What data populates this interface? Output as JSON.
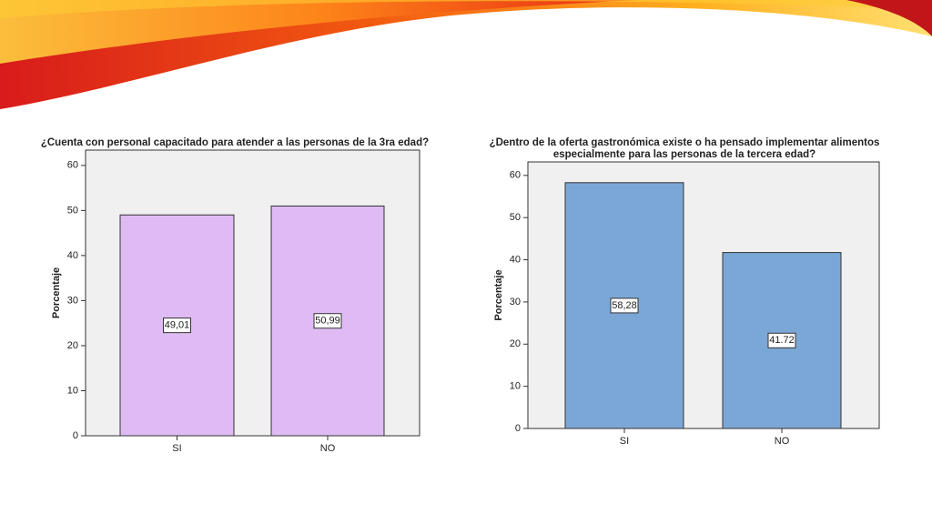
{
  "chart_data": [
    {
      "type": "bar",
      "title": [
        "¿Cuenta con personal capacitado para atender a las personas de la 3ra edad?"
      ],
      "y_label": "Porcentaje",
      "categories": [
        "SI",
        "NO"
      ],
      "values": [
        49.01,
        50.99
      ],
      "value_labels": [
        "49,01",
        "50,99"
      ],
      "color": "#dfbbf3",
      "ylim": [
        0,
        63.4
      ],
      "yticks": [
        0,
        10,
        20,
        30,
        40,
        50,
        60
      ]
    },
    {
      "type": "bar",
      "title": [
        "¿Dentro de la oferta gastronómica existe o ha pensado implementar alimentos",
        "especialmente para las personas de la tercera edad?"
      ],
      "y_label": "Porcentaje",
      "categories": [
        "SI",
        "NO"
      ],
      "values": [
        58.28,
        41.72
      ],
      "value_labels": [
        "58,28",
        "41.72"
      ],
      "color": "#7ba7d6",
      "ylim": [
        0,
        63.2
      ],
      "yticks": [
        0,
        10,
        20,
        30,
        40,
        50,
        60
      ]
    }
  ]
}
